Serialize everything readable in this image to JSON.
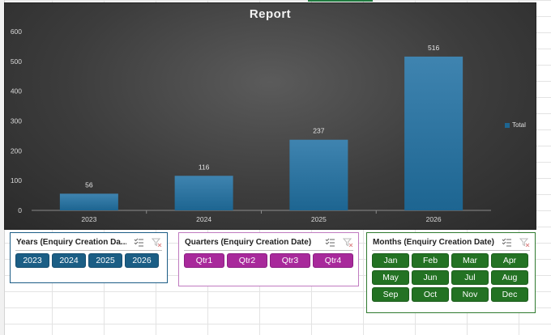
{
  "chart_data": {
    "type": "bar",
    "title": "Report",
    "categories": [
      "2023",
      "2024",
      "2025",
      "2026"
    ],
    "series": [
      {
        "name": "Total",
        "values": [
          56,
          116,
          237,
          516
        ],
        "color": "#1d6591"
      }
    ],
    "yticks": [
      "0",
      "100",
      "200",
      "300",
      "400",
      "500",
      "600"
    ],
    "ylim": [
      0,
      600
    ],
    "legend_position": "right",
    "grid": false
  },
  "slicers": {
    "years": {
      "title": "Years (Enquiry Creation Da...",
      "color": "#1b5e85",
      "items": [
        "2023",
        "2024",
        "2025",
        "2026"
      ]
    },
    "quarters": {
      "title": "Quarters (Enquiry Creation Date)",
      "color": "#a8299b",
      "items": [
        "Qtr1",
        "Qtr2",
        "Qtr3",
        "Qtr4"
      ]
    },
    "months": {
      "title": "Months (Enquiry Creation Date)",
      "color": "#237223",
      "items": [
        "Jan",
        "Feb",
        "Mar",
        "Apr",
        "May",
        "Jun",
        "Jul",
        "Aug",
        "Sep",
        "Oct",
        "Nov",
        "Dec"
      ]
    },
    "icons": [
      "multi-select-icon",
      "clear-filter-icon"
    ]
  }
}
